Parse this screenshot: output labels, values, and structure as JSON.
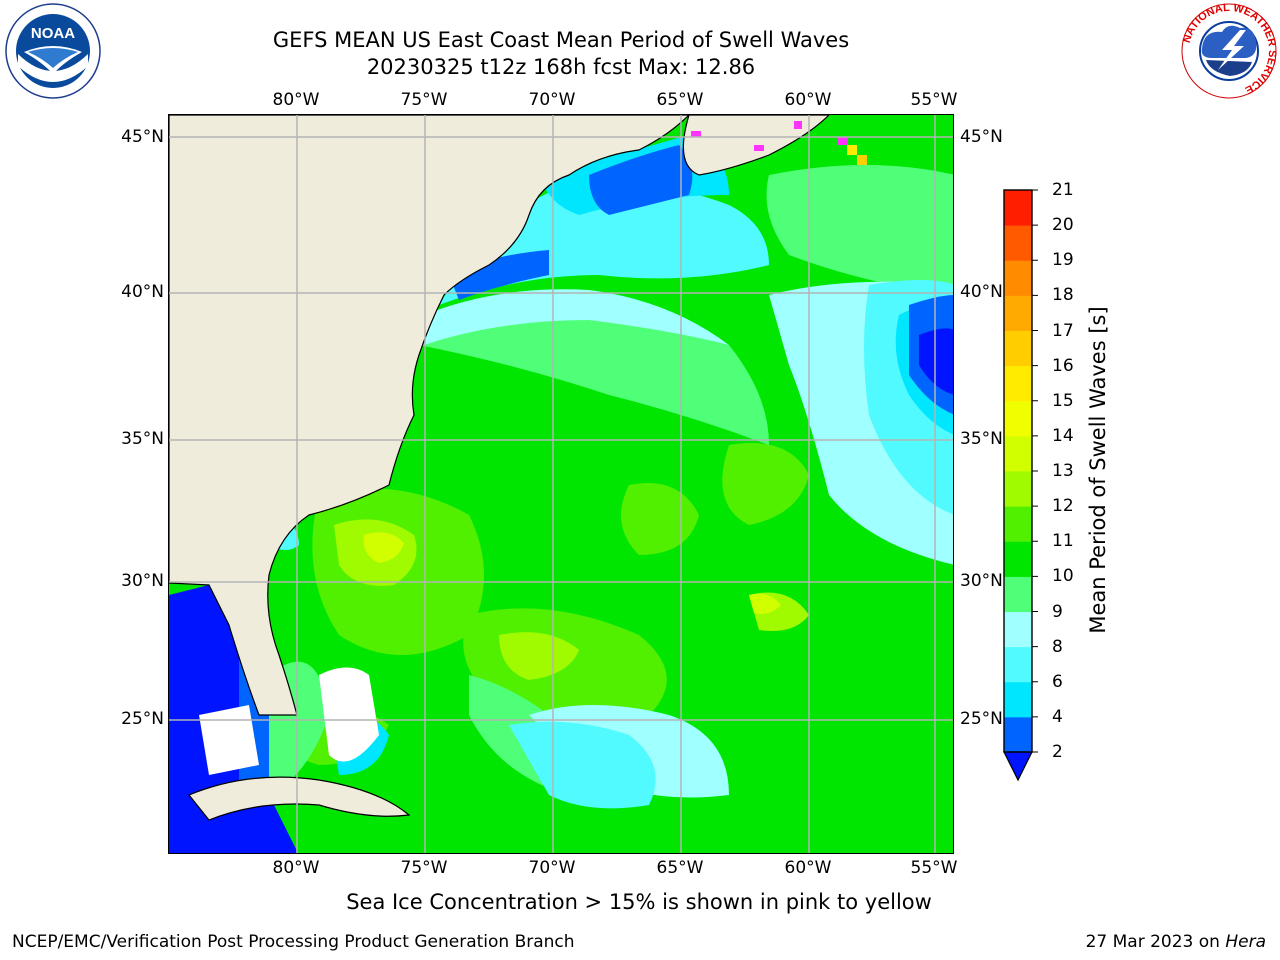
{
  "title": {
    "line1": "GEFS MEAN US East Coast Mean Period of Swell Waves",
    "line2": "20230325 t12z 168h fcst   Max: 12.86"
  },
  "map": {
    "lon_labels": [
      "80°W",
      "75°W",
      "70°W",
      "65°W",
      "60°W",
      "55°W"
    ],
    "lat_labels": [
      "45°N",
      "40°N",
      "35°N",
      "30°N",
      "25°N"
    ]
  },
  "colorbar": {
    "label": "Mean Period of Swell Waves [s]",
    "ticks": [
      "2",
      "4",
      "6",
      "8",
      "9",
      "10",
      "11",
      "12",
      "13",
      "14",
      "15",
      "16",
      "17",
      "18",
      "19",
      "20",
      "21"
    ],
    "colors": [
      "#0064ff",
      "#00e6ff",
      "#50faff",
      "#a0ffff",
      "#50ff78",
      "#00e600",
      "#50f000",
      "#a0fa00",
      "#d2ff00",
      "#f0ff00",
      "#ffeb00",
      "#ffcd00",
      "#ffaa00",
      "#ff8c00",
      "#ff5a00",
      "#ff1e00"
    ],
    "under_color": "#0014ff"
  },
  "caption": "Sea Ice Concentration > 15% is shown in pink to yellow",
  "footer": {
    "left": "NCEP/EMC/Verification Post Processing Product Generation Branch",
    "right_prefix": "27 Mar 2023 on ",
    "right_host": "Hera"
  },
  "logos": {
    "noaa_text": "NOAA",
    "nws_ring_text": "NATIONAL WEATHER SERVICE"
  }
}
